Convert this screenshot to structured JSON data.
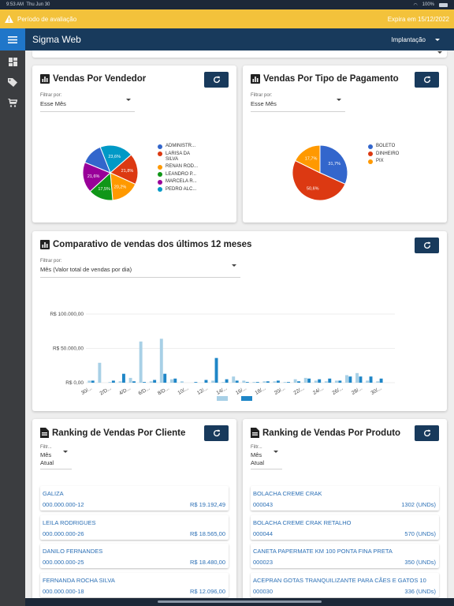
{
  "status_bar": {
    "time": "9:53 AM",
    "date": "Thu Jun 30",
    "battery": "100%"
  },
  "evaluation_banner": {
    "text": "Período de avaliação",
    "expires": "Expira em 15/12/2022"
  },
  "app_bar": {
    "title": "Sigma Web",
    "context": "Implantação"
  },
  "sidebar": {
    "items": [
      {
        "icon": "dashboard-icon"
      },
      {
        "icon": "tag-icon"
      },
      {
        "icon": "cart-icon"
      }
    ]
  },
  "colors": {
    "primary": "#183a5c",
    "accent": "#1f76c9",
    "banner": "#f3c23b",
    "sidebar": "#3b3d40"
  },
  "sales_by_seller": {
    "title": "Vendas Por Vendedor",
    "filter_label": "Filtrar por:",
    "filter_value": "Esse Mês",
    "chart_data": {
      "type": "pie",
      "slices": [
        {
          "label": "ADMINISTR...",
          "value": 15.4,
          "color": "#3366cc"
        },
        {
          "label": "LARISA DA SILVA",
          "value": 21.8,
          "color": "#dc3912"
        },
        {
          "label": "RENAN ROD...",
          "value": 20.2,
          "color": "#ff9900"
        },
        {
          "label": "LEANDRO P...",
          "value": 17.5,
          "color": "#109618"
        },
        {
          "label": "MARCELA R...",
          "value": 21.6,
          "color": "#990099"
        },
        {
          "label": "PEDRO ALC...",
          "value": 23.6,
          "color": "#0099c6"
        }
      ],
      "data_labels": [
        "23,6%",
        "21,8%",
        "20,2%",
        "17,5%",
        "21,6%"
      ]
    }
  },
  "sales_by_payment": {
    "title": "Vendas Por Tipo de Pagamento",
    "filter_label": "Filtrar por:",
    "filter_value": "Esse Mês",
    "chart_data": {
      "type": "pie",
      "slices": [
        {
          "label": "BOLETO",
          "value": 31.7,
          "color": "#3366cc"
        },
        {
          "label": "DINHEIRO",
          "value": 50.6,
          "color": "#dc3912"
        },
        {
          "label": "PIX",
          "value": 17.7,
          "color": "#ff9900"
        }
      ],
      "data_labels": [
        "31,7%",
        "50,6%",
        "17,7%"
      ]
    }
  },
  "monthly_comparison": {
    "title": "Comparativo de vendas dos últimos 12 meses",
    "filter_label": "Filtrar por:",
    "filter_value": "Mês (Valor total de vendas por dia)",
    "chart_data": {
      "type": "bar",
      "y_ticks": [
        "R$ 100.000,00",
        "R$ 50.000,00",
        "R$ 0,00"
      ],
      "ylim": [
        0,
        100000
      ],
      "x_ticks": [
        "30/...",
        "2/D...",
        "4/D...",
        "6/D...",
        "8/D...",
        "10/...",
        "12/...",
        "14/...",
        "16/...",
        "18/...",
        "20/...",
        "22/...",
        "24/...",
        "26/...",
        "28/...",
        "30/..."
      ],
      "series": [
        {
          "color": "#a8d0e6",
          "values": [
            3000,
            29000,
            1000,
            2000,
            7000,
            60000,
            2000,
            64000,
            5000,
            2000,
            0,
            0,
            3000,
            1000,
            9000,
            3000,
            1000,
            2000,
            2000,
            1000,
            5000,
            7000,
            3000,
            2000,
            3000,
            11000,
            14000,
            3000,
            2000,
            0
          ]
        },
        {
          "color": "#1f86c7",
          "values": [
            3000,
            0,
            3000,
            13000,
            2000,
            1000,
            4000,
            13000,
            6000,
            0,
            1000,
            4000,
            36000,
            5000,
            3000,
            1000,
            1000,
            2000,
            3000,
            1000,
            2000,
            6000,
            5000,
            6000,
            3000,
            9000,
            9000,
            9000,
            6000,
            0
          ]
        }
      ]
    }
  },
  "ranking_clients": {
    "title": "Ranking de Vendas Por Cliente",
    "filter_label": "Filtr...",
    "filter_value_line1": "Mês",
    "filter_value_line2": "Atual",
    "items": [
      {
        "name": "GALIZA",
        "code": "000.000.000-12",
        "value": "R$ 19.192,49"
      },
      {
        "name": "LEILA RODRIGUES",
        "code": "000.000.000-26",
        "value": "R$ 18.565,00"
      },
      {
        "name": "DANILO FERNANDES",
        "code": "000.000.000-25",
        "value": "R$ 18.480,00"
      },
      {
        "name": "FERNANDA ROCHA SILVA",
        "code": "000.000.000-18",
        "value": "R$ 12.096,00"
      }
    ]
  },
  "ranking_products": {
    "title": "Ranking de Vendas Por Produto",
    "filter_label": "Filtr...",
    "filter_value_line1": "Mês",
    "filter_value_line2": "Atual",
    "items": [
      {
        "name": "BOLACHA CREME CRAK",
        "code": "000043",
        "value": "1302 (UNDs)"
      },
      {
        "name": "BOLACHA CREME CRAK RETALHO",
        "code": "000044",
        "value": "570 (UNDs)"
      },
      {
        "name": "CANETA PAPERMATE KM 100 PONTA FINA PRETA",
        "code": "000023",
        "value": "350 (UNDs)"
      },
      {
        "name": "ACEPRAN GOTAS TRANQUILIZANTE PARA CÃES E GATOS 10",
        "code": "000030",
        "value": "336 (UNDs)"
      }
    ]
  }
}
